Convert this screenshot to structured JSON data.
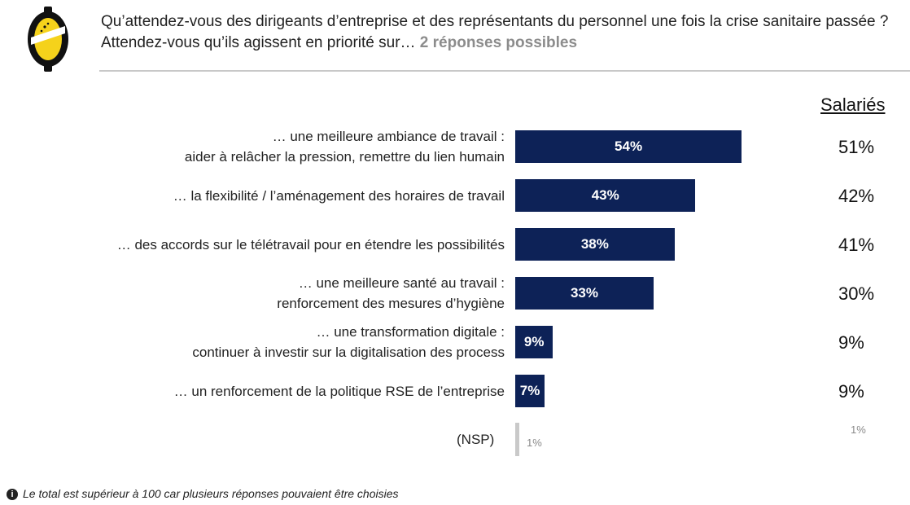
{
  "header": {
    "question_line1": "Qu’attendez-vous des dirigeants d’entreprise et des représentants du personnel une fois la crise sanitaire passée ?",
    "question_line2": "Attendez-vous qu’ils agissent en priorité sur…",
    "question_hint": " 2 réponses possibles",
    "logo_icon": "lemon-logo-icon"
  },
  "chart_data": {
    "type": "bar",
    "orientation": "horizontal",
    "categories": [
      [
        "… une meilleure ambiance de travail :",
        "aider à relâcher la pression, remettre du lien humain"
      ],
      [
        "… la flexibilité / l’aménagement des horaires de travail"
      ],
      [
        "… des accords sur le télétravail pour en étendre les possibilités"
      ],
      [
        "… une meilleure santé au travail :",
        "renforcement des mesures d’hygiène"
      ],
      [
        "… une transformation digitale :",
        "continuer à investir sur la digitalisation des process"
      ],
      [
        "… un renforcement de la politique RSE de l’entreprise"
      ],
      [
        "(NSP)"
      ]
    ],
    "series": [
      {
        "values": [
          54,
          43,
          38,
          33,
          9,
          7,
          1
        ],
        "labels": [
          "54%",
          "43%",
          "38%",
          "33%",
          "9%",
          "7%",
          "1%"
        ],
        "color": "#0d2257"
      },
      {
        "name": "Salariés",
        "values": [
          51,
          42,
          41,
          30,
          9,
          9,
          1
        ],
        "labels": [
          "51%",
          "42%",
          "41%",
          "30%",
          "9%",
          "9%",
          "1%"
        ]
      }
    ],
    "column_header": "Salariés",
    "nsp_color": "#c9c9c9",
    "xlim": [
      0,
      100
    ]
  },
  "footnote": {
    "icon": "info-icon",
    "icon_glyph": "i",
    "text": "Le total est supérieur à 100 car plusieurs réponses pouvaient être choisies"
  }
}
